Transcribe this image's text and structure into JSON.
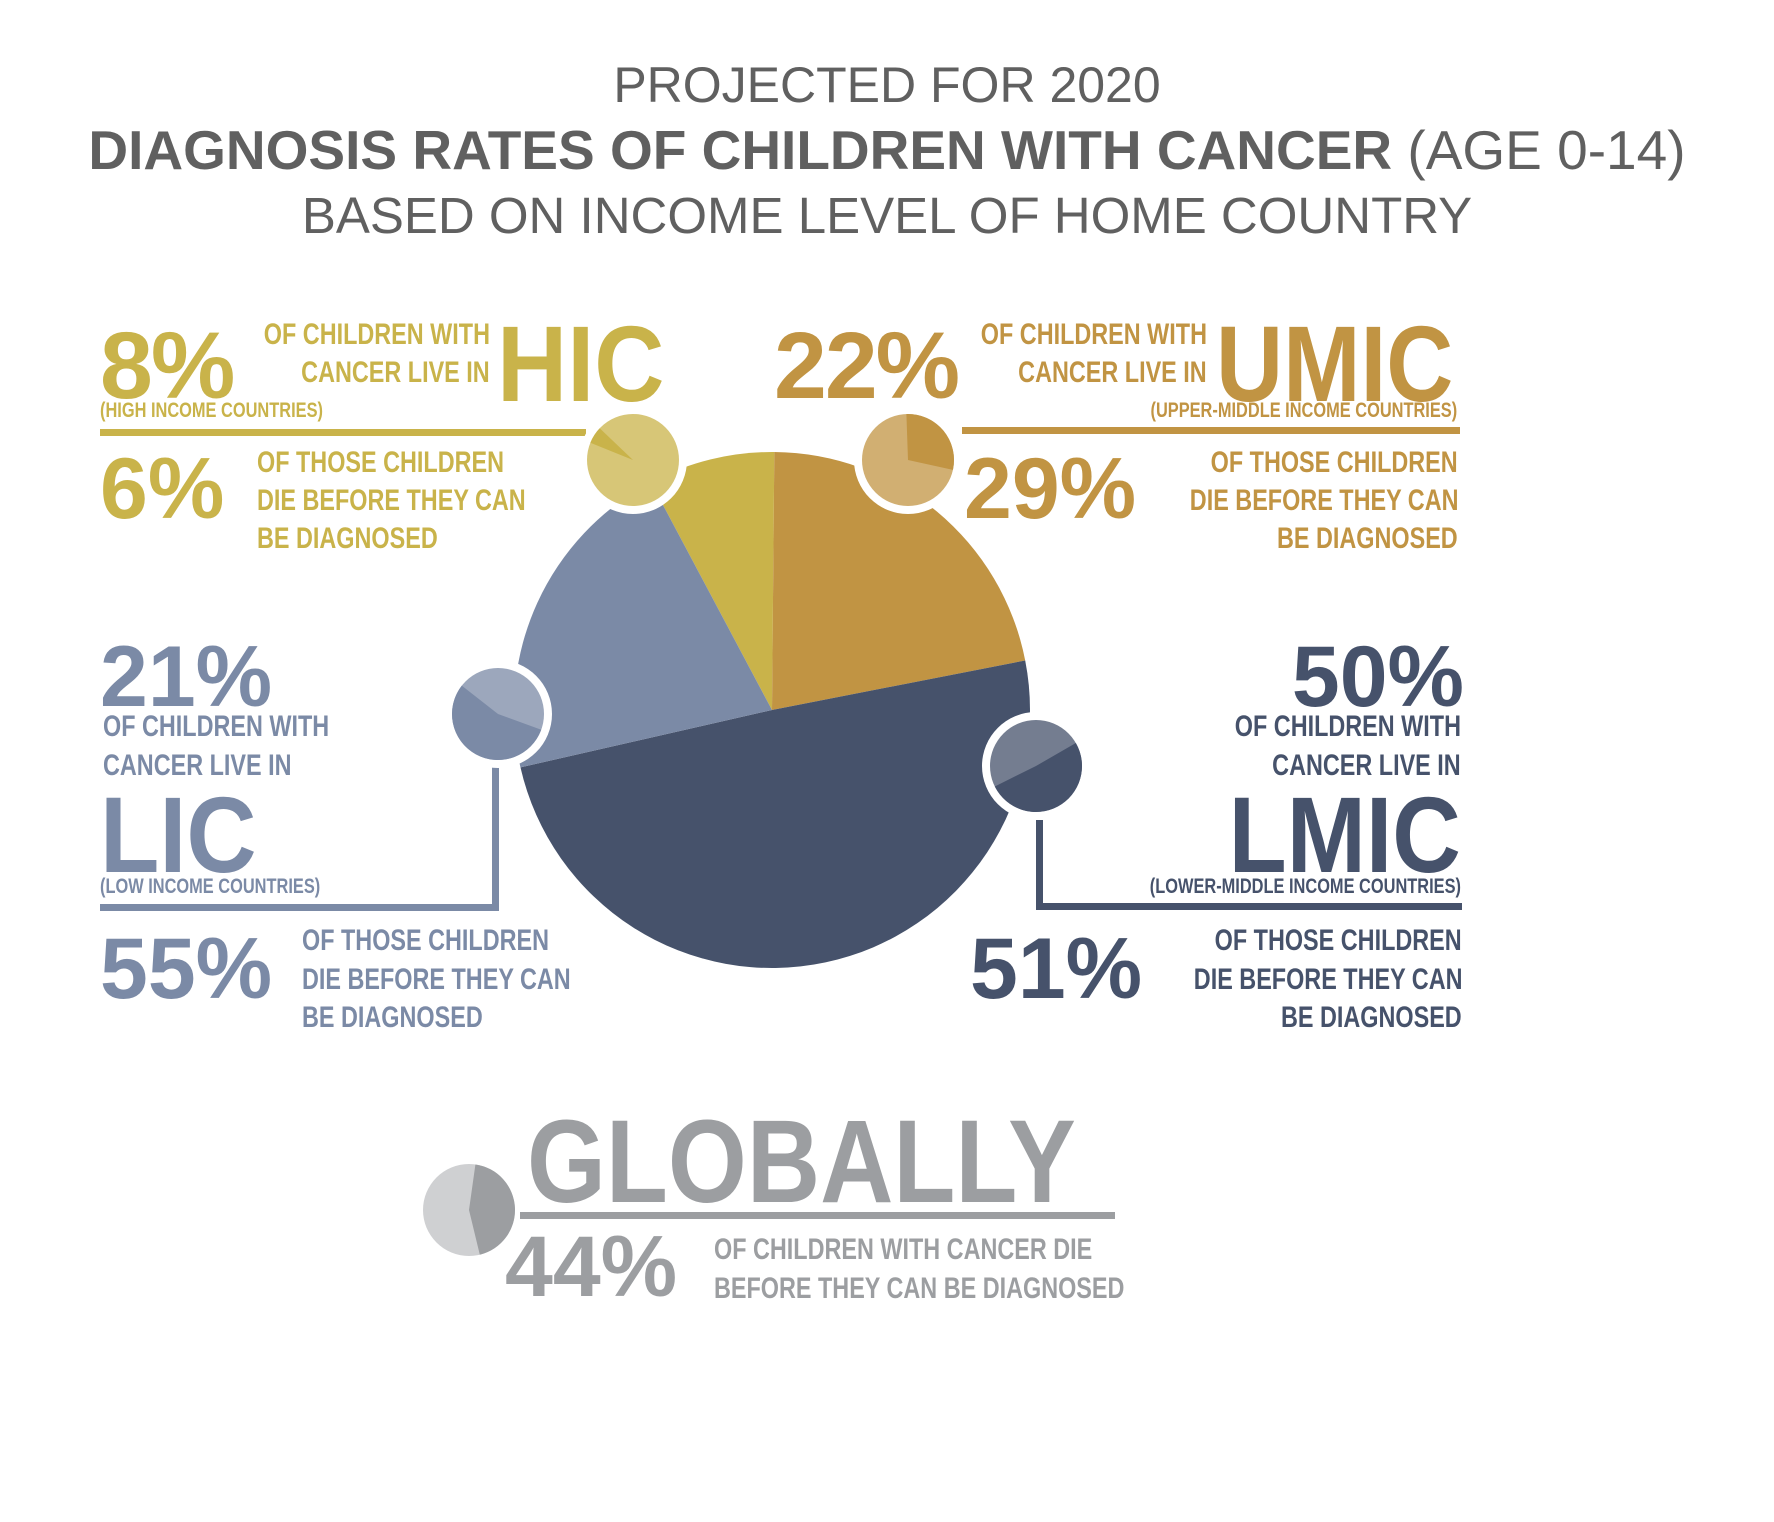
{
  "title": {
    "line1": "PROJECTED FOR 2020",
    "line2_bold": "DIAGNOSIS RATES OF CHILDREN WITH CANCER",
    "line2_rest": " (AGE 0-14)",
    "line3": "BASED ON INCOME LEVEL OF HOME COUNTRY"
  },
  "colors": {
    "hic": "#c9b34a",
    "umic": "#c19443",
    "lic": "#7b8aa6",
    "lmic": "#46526b",
    "global": "#9c9ea1",
    "title": "#606060"
  },
  "chart_data": {
    "type": "pie",
    "title": "",
    "categories": [
      "HIC",
      "UMIC",
      "LMIC",
      "LIC"
    ],
    "values": [
      8,
      22,
      50,
      21
    ],
    "undiagnosed_death_rate_percent": [
      6,
      29,
      51,
      55
    ],
    "global_undiagnosed_death_rate_percent": 44
  },
  "groups": {
    "hic": {
      "share": "8%",
      "line1": "OF CHILDREN WITH",
      "line2": "CANCER LIVE IN",
      "code": "HIC",
      "full": "(HIGH INCOME COUNTRIES)",
      "death": "6%",
      "d1": "OF THOSE CHILDREN",
      "d2": "DIE BEFORE THEY CAN",
      "d3": "BE DIAGNOSED"
    },
    "umic": {
      "share": "22%",
      "line1": "OF CHILDREN WITH",
      "line2": "CANCER LIVE IN",
      "code": "UMIC",
      "full": "(UPPER-MIDDLE INCOME COUNTRIES)",
      "death": "29%",
      "d1": "OF THOSE CHILDREN",
      "d2": "DIE BEFORE THEY CAN",
      "d3": "BE DIAGNOSED"
    },
    "lic": {
      "share": "21%",
      "line1": "OF CHILDREN WITH",
      "line2": "CANCER LIVE IN",
      "code": "LIC",
      "full": "(LOW INCOME COUNTRIES)",
      "death": "55%",
      "d1": "OF THOSE CHILDREN",
      "d2": "DIE BEFORE THEY CAN",
      "d3": "BE DIAGNOSED"
    },
    "lmic": {
      "share": "50%",
      "line1": "OF CHILDREN WITH",
      "line2": "CANCER LIVE IN",
      "code": "LMIC",
      "full": "(LOWER-MIDDLE INCOME COUNTRIES)",
      "death": "51%",
      "d1": "OF THOSE CHILDREN",
      "d2": "DIE BEFORE THEY CAN",
      "d3": "BE DIAGNOSED"
    },
    "global": {
      "heading": "GLOBALLY",
      "death": "44%",
      "d1": "OF CHILDREN WITH CANCER DIE",
      "d2": "BEFORE THEY CAN BE DIAGNOSED"
    }
  }
}
